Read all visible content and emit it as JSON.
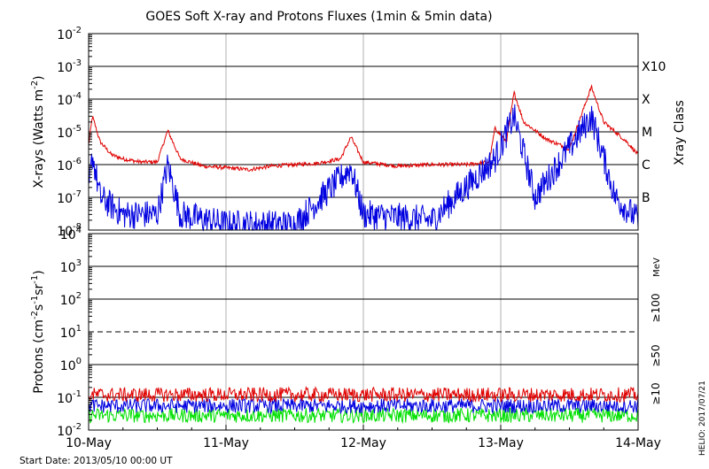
{
  "chart_data": [
    {
      "type": "line",
      "title": "GOES Soft X-ray and Protons Fluxes   (1min & 5min data)",
      "ylabel": "X-rays (Watts m^-2)",
      "yscale": "log",
      "ylim": [
        1e-08,
        0.01
      ],
      "xlim": [
        "2013-05-10 00:00",
        "2013-05-14 00:00"
      ],
      "x_ticks": [
        "10-May",
        "11-May",
        "12-May",
        "13-May",
        "14-May"
      ],
      "y_ticks": [
        {
          "mant": "10",
          "exp": "-8"
        },
        {
          "mant": "10",
          "exp": "-7"
        },
        {
          "mant": "10",
          "exp": "-6"
        },
        {
          "mant": "10",
          "exp": "-5"
        },
        {
          "mant": "10",
          "exp": "-4"
        },
        {
          "mant": "10",
          "exp": "-3"
        },
        {
          "mant": "10",
          "exp": "-2"
        }
      ],
      "right_axis_label": "Xray Class",
      "class_labels": [
        {
          "label": "B",
          "flux": 1e-07
        },
        {
          "label": "C",
          "flux": 1e-06
        },
        {
          "label": "M",
          "flux": 1e-05
        },
        {
          "label": "X",
          "flux": 0.0001
        },
        {
          "label": "X10",
          "flux": 0.001
        }
      ],
      "grid": true,
      "colors": {
        "long_channel": "#e00000",
        "short_channel": "#0000e0",
        "grid": "#b0b0b0"
      },
      "series": [
        {
          "values": [
            [
              "2013-05-10 00:00",
              4e-06
            ],
            [
              "2013-05-10 00:40",
              3e-05
            ],
            [
              "2013-05-10 02:00",
              5e-06
            ],
            [
              "2013-05-10 04:00",
              2e-06
            ],
            [
              "2013-05-10 06:00",
              1.5e-06
            ],
            [
              "2013-05-10 09:00",
              1.2e-06
            ],
            [
              "2013-05-10 12:00",
              1.2e-06
            ],
            [
              "2013-05-10 13:50",
              1.1e-05
            ],
            [
              "2013-05-10 16:00",
              1.5e-06
            ],
            [
              "2013-05-10 20:00",
              9e-07
            ],
            [
              "2013-05-11 00:00",
              8e-07
            ],
            [
              "2013-05-11 04:00",
              7e-07
            ],
            [
              "2013-05-11 08:00",
              9e-07
            ],
            [
              "2013-05-11 12:00",
              1e-06
            ],
            [
              "2013-05-11 16:00",
              1.1e-06
            ],
            [
              "2013-05-11 20:00",
              1.5e-06
            ],
            [
              "2013-05-11 21:50",
              7e-06
            ],
            [
              "2013-05-12 00:00",
              1.2e-06
            ],
            [
              "2013-05-12 06:00",
              9e-07
            ],
            [
              "2013-05-12 12:00",
              1e-06
            ],
            [
              "2013-05-12 18:00",
              1e-06
            ],
            [
              "2013-05-12 22:00",
              1.2e-06
            ],
            [
              "2013-05-12 23:00",
              1.3e-05
            ],
            [
              "2013-05-13 01:00",
              5e-06
            ],
            [
              "2013-05-13 02:20",
              0.00016
            ],
            [
              "2013-05-13 04:00",
              2e-05
            ],
            [
              "2013-05-13 08:00",
              6e-06
            ],
            [
              "2013-05-13 12:00",
              3e-06
            ],
            [
              "2013-05-13 15:50",
              0.00024
            ],
            [
              "2013-05-13 18:00",
              2e-05
            ],
            [
              "2013-05-13 22:00",
              5e-06
            ],
            [
              "2013-05-14 00:00",
              2e-06
            ]
          ]
        },
        {
          "values": [
            [
              "2013-05-10 00:00",
              1.5e-07
            ],
            [
              "2013-05-10 00:40",
              2e-06
            ],
            [
              "2013-05-10 02:00",
              1e-07
            ],
            [
              "2013-05-10 06:00",
              3e-08
            ],
            [
              "2013-05-10 12:00",
              3e-08
            ],
            [
              "2013-05-10 13:50",
              1e-06
            ],
            [
              "2013-05-10 16:00",
              3e-08
            ],
            [
              "2013-05-11 00:00",
              1.5e-08
            ],
            [
              "2013-05-11 12:00",
              1.5e-08
            ],
            [
              "2013-05-11 21:50",
              8e-07
            ],
            [
              "2013-05-12 00:00",
              3e-08
            ],
            [
              "2013-05-12 12:00",
              2e-08
            ],
            [
              "2013-05-12 23:00",
              1.5e-06
            ],
            [
              "2013-05-13 02:20",
              3e-05
            ],
            [
              "2013-05-13 06:00",
              1e-07
            ],
            [
              "2013-05-13 15:50",
              3e-05
            ],
            [
              "2013-05-13 20:00",
              1e-07
            ],
            [
              "2013-05-14 00:00",
              2e-08
            ]
          ]
        }
      ]
    },
    {
      "type": "line",
      "ylabel": "Protons (cm^-2 s^-1 sr^-1)",
      "yscale": "log",
      "ylim": [
        0.01,
        10000
      ],
      "xlim": [
        "2013-05-10 00:00",
        "2013-05-14 00:00"
      ],
      "x_ticks": [
        "10-May",
        "11-May",
        "12-May",
        "13-May",
        "14-May"
      ],
      "y_ticks": [
        {
          "mant": "10",
          "exp": "-2"
        },
        {
          "mant": "10",
          "exp": "-1"
        },
        {
          "mant": "10",
          "exp": "0"
        },
        {
          "mant": "10",
          "exp": "1"
        },
        {
          "mant": "10",
          "exp": "2"
        },
        {
          "mant": "10",
          "exp": "3"
        },
        {
          "mant": "10",
          "exp": "4"
        }
      ],
      "threshold": 10,
      "energy_unit": "MeV",
      "grid": true,
      "series": [
        {
          "name": "≥10",
          "color": "#e00000",
          "level": 0.12
        },
        {
          "name": "≥50",
          "color": "#0000e0",
          "level": 0.055
        },
        {
          "name": "≥100",
          "color": "#00e000",
          "level": 0.028
        }
      ]
    }
  ],
  "footer": {
    "start_date": "Start Date: 2013/05/10 00:00 UT",
    "credit": "HELIO: 2017/07/21"
  }
}
